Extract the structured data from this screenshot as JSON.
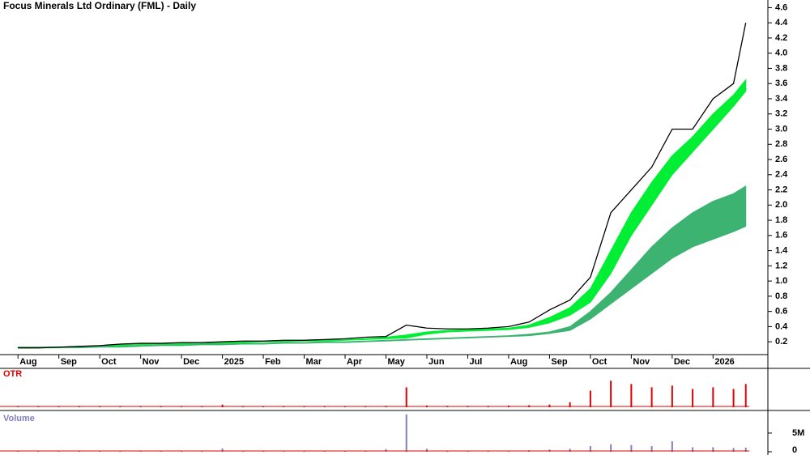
{
  "chart_data": [
    {
      "type": "line",
      "title": "Focus Minerals Ltd Ordinary (FML) - Daily",
      "color": "#000000",
      "x": [
        0,
        0.5,
        1,
        1.5,
        2,
        2.5,
        3,
        3.5,
        4,
        4.5,
        5,
        5.5,
        6,
        6.5,
        7,
        7.5,
        8,
        8.5,
        9,
        9.5,
        10,
        10.5,
        11,
        11.5,
        12,
        12.5,
        13,
        13.5,
        14,
        14.5,
        15,
        15.5,
        16,
        16.5,
        17,
        17.5,
        17.8
      ],
      "values": [
        0.12,
        0.12,
        0.13,
        0.14,
        0.15,
        0.17,
        0.18,
        0.18,
        0.19,
        0.19,
        0.2,
        0.21,
        0.21,
        0.22,
        0.22,
        0.23,
        0.24,
        0.26,
        0.27,
        0.42,
        0.38,
        0.37,
        0.37,
        0.38,
        0.4,
        0.46,
        0.62,
        0.75,
        1.05,
        1.9,
        2.2,
        2.5,
        3.0,
        3.0,
        3.4,
        3.6,
        4.4
      ],
      "bands": [
        {
          "color": "#00ee33",
          "upper": [
            0.13,
            0.13,
            0.13,
            0.14,
            0.15,
            0.16,
            0.17,
            0.18,
            0.18,
            0.19,
            0.19,
            0.2,
            0.21,
            0.21,
            0.22,
            0.22,
            0.23,
            0.24,
            0.26,
            0.29,
            0.33,
            0.35,
            0.36,
            0.37,
            0.38,
            0.42,
            0.52,
            0.65,
            0.9,
            1.4,
            1.9,
            2.3,
            2.65,
            2.9,
            3.2,
            3.45,
            3.65
          ],
          "lower": [
            0.12,
            0.12,
            0.12,
            0.13,
            0.14,
            0.15,
            0.16,
            0.17,
            0.17,
            0.18,
            0.18,
            0.19,
            0.2,
            0.2,
            0.21,
            0.21,
            0.22,
            0.23,
            0.24,
            0.25,
            0.3,
            0.33,
            0.34,
            0.35,
            0.36,
            0.39,
            0.45,
            0.55,
            0.72,
            1.1,
            1.6,
            2.0,
            2.4,
            2.7,
            3.0,
            3.3,
            3.5
          ]
        },
        {
          "color": "#3cb371",
          "upper": [
            0.13,
            0.13,
            0.13,
            0.13,
            0.14,
            0.14,
            0.15,
            0.16,
            0.16,
            0.17,
            0.17,
            0.18,
            0.18,
            0.19,
            0.19,
            0.2,
            0.2,
            0.21,
            0.22,
            0.23,
            0.24,
            0.25,
            0.26,
            0.27,
            0.28,
            0.3,
            0.33,
            0.4,
            0.6,
            0.85,
            1.15,
            1.45,
            1.7,
            1.9,
            2.05,
            2.15,
            2.25
          ],
          "lower": [
            0.12,
            0.12,
            0.12,
            0.12,
            0.13,
            0.13,
            0.14,
            0.15,
            0.15,
            0.16,
            0.16,
            0.17,
            0.17,
            0.18,
            0.18,
            0.19,
            0.19,
            0.2,
            0.21,
            0.22,
            0.23,
            0.24,
            0.25,
            0.26,
            0.27,
            0.28,
            0.31,
            0.35,
            0.5,
            0.7,
            0.9,
            1.1,
            1.3,
            1.45,
            1.55,
            1.65,
            1.72
          ]
        }
      ],
      "xlim": [
        -0.44,
        18.4
      ],
      "xticks": [
        {
          "value": 0,
          "label": "Aug"
        },
        {
          "value": 1,
          "label": "Sep"
        },
        {
          "value": 2,
          "label": "Oct"
        },
        {
          "value": 3,
          "label": "Nov"
        },
        {
          "value": 4,
          "label": "Dec"
        },
        {
          "value": 5,
          "label": "2025"
        },
        {
          "value": 6,
          "label": "Feb"
        },
        {
          "value": 7,
          "label": "Mar"
        },
        {
          "value": 8,
          "label": "Apr"
        },
        {
          "value": 9,
          "label": "May"
        },
        {
          "value": 10,
          "label": "Jun"
        },
        {
          "value": 11,
          "label": "Jul"
        },
        {
          "value": 12,
          "label": "Aug"
        },
        {
          "value": 13,
          "label": "Sep"
        },
        {
          "value": 14,
          "label": "Oct"
        },
        {
          "value": 15,
          "label": "Nov"
        },
        {
          "value": 16,
          "label": "Dec"
        },
        {
          "value": 17,
          "label": "2026"
        }
      ],
      "ylim": [
        -0.15,
        4.7
      ],
      "yticks": [
        0.2,
        0.4,
        0.6,
        0.8,
        {
          "value": 1,
          "label": "1.0"
        },
        1.2,
        1.4,
        1.6,
        1.8,
        {
          "value": 2,
          "label": "2.0"
        },
        2.2,
        2.4,
        2.6,
        2.8,
        {
          "value": 3,
          "label": "3.0"
        },
        3.2,
        3.4,
        3.6,
        3.8,
        {
          "value": 4,
          "label": "4.0"
        },
        4.2,
        4.4,
        4.6
      ]
    },
    {
      "type": "bar",
      "title": "OTR",
      "color": "#e00000",
      "x": [
        0,
        0.5,
        1,
        1.5,
        2,
        2.5,
        3,
        3.5,
        4,
        4.5,
        5,
        5.5,
        6,
        6.5,
        7,
        7.5,
        8,
        8.5,
        9,
        9.5,
        10,
        10.5,
        11,
        11.5,
        12,
        12.5,
        13,
        13.5,
        14,
        14.5,
        15,
        15.5,
        16,
        16.5,
        17,
        17.5,
        17.8
      ],
      "values": [
        0.02,
        0.02,
        0.02,
        0.03,
        0.02,
        0.03,
        0.02,
        0.02,
        0.02,
        0.03,
        0.08,
        0.02,
        0.02,
        0.02,
        0.03,
        0.02,
        0.03,
        0.03,
        0.04,
        0.6,
        0.05,
        0.04,
        0.04,
        0.04,
        0.05,
        0.06,
        0.08,
        0.15,
        0.5,
        0.8,
        0.7,
        0.6,
        0.65,
        0.55,
        0.6,
        0.55,
        0.7
      ],
      "ylim": [
        0,
        1
      ]
    },
    {
      "type": "bar",
      "title": "Volume",
      "color": "#8080c0",
      "x": [
        0,
        0.5,
        1,
        1.5,
        2,
        2.5,
        3,
        3.5,
        4,
        4.5,
        5,
        5.5,
        6,
        6.5,
        7,
        7.5,
        8,
        8.5,
        9,
        9.5,
        10,
        10.5,
        11,
        11.5,
        12,
        12.5,
        13,
        13.5,
        14,
        14.5,
        15,
        15.5,
        16,
        16.5,
        17,
        17.5,
        17.8
      ],
      "values": [
        100000,
        100000,
        100000,
        150000,
        100000,
        150000,
        100000,
        100000,
        100000,
        150000,
        900000,
        100000,
        100000,
        100000,
        200000,
        150000,
        200000,
        300000,
        700000,
        10000000,
        800000,
        300000,
        300000,
        300000,
        300000,
        400000,
        600000,
        800000,
        1500000,
        2000000,
        1800000,
        1500000,
        2800000,
        1200000,
        1200000,
        1000000,
        1100000
      ],
      "ylim": [
        0,
        10400000
      ],
      "yticks": [
        {
          "value": 0,
          "label": "0"
        },
        {
          "value": 5000000,
          "label": "5M"
        }
      ]
    }
  ]
}
